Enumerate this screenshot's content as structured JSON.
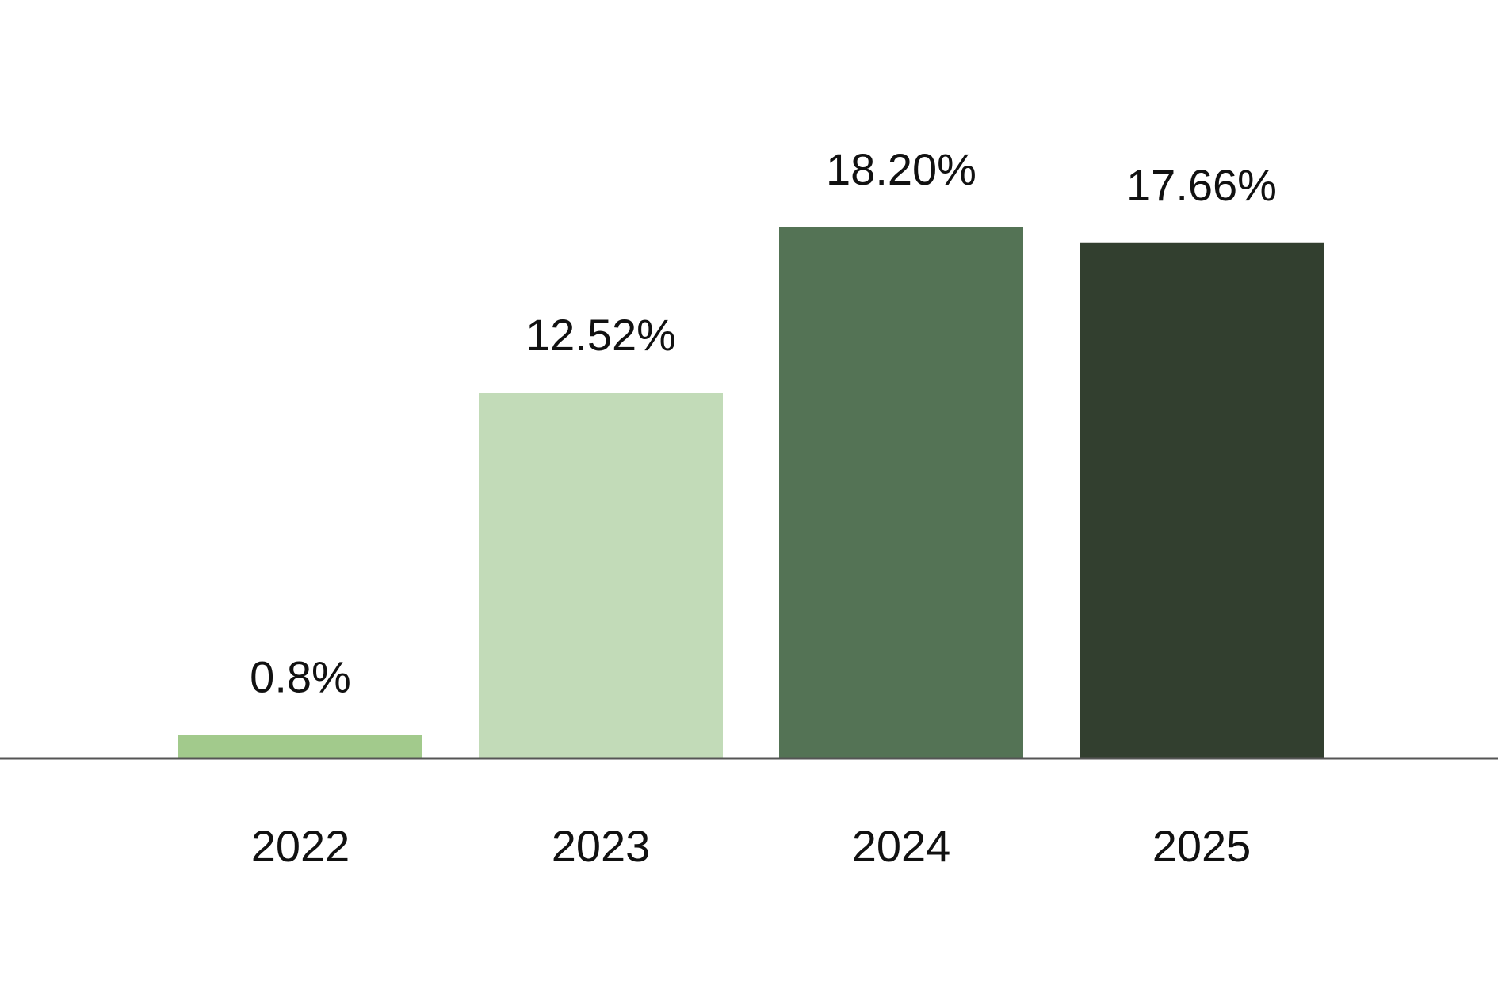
{
  "chart_data": {
    "type": "bar",
    "title": "",
    "xlabel": "",
    "ylabel": "",
    "categories": [
      "2022",
      "2023",
      "2024",
      "2025"
    ],
    "values": [
      0.8,
      12.52,
      18.2,
      17.66
    ],
    "data_labels": [
      "0.8%",
      "12.52%",
      "18.20%",
      "17.66%"
    ],
    "colors": [
      "#a2ca8c",
      "#c2dbb8",
      "#547355",
      "#323f2f"
    ],
    "axis_color": "#555555",
    "ylim": [
      0,
      20
    ],
    "grid": false,
    "legend": "none"
  }
}
